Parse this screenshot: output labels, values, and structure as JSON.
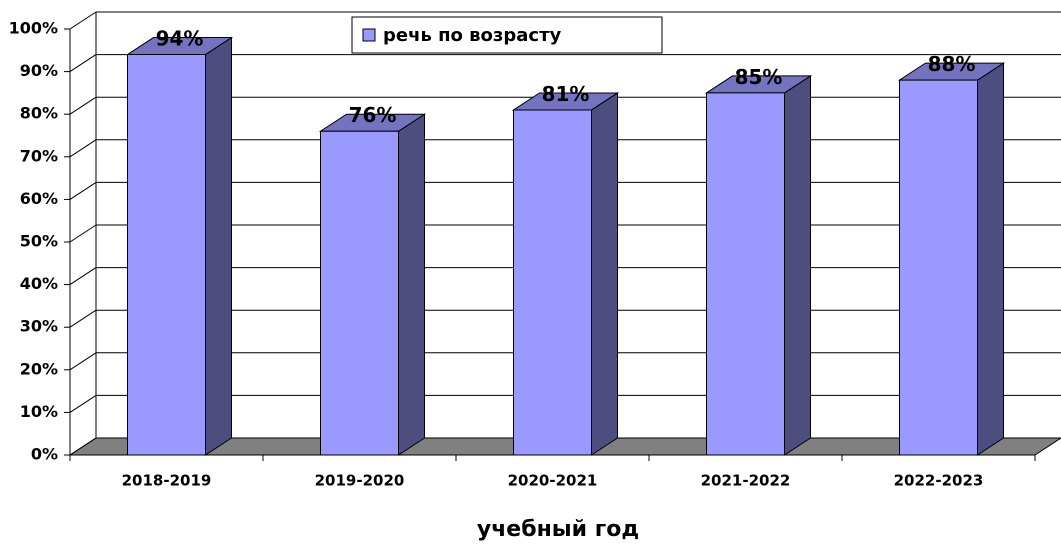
{
  "chart_data": {
    "type": "bar3d",
    "x_label": "учебный год",
    "categories": [
      "2018-2019",
      "2019-2020",
      "2020-2021",
      "2021-2022",
      "2022-2023"
    ],
    "series": [
      {
        "name": "речь по возрасту",
        "color": "#9999ff",
        "values": [
          94,
          76,
          81,
          85,
          88
        ],
        "value_labels": [
          "94%",
          "76%",
          "81%",
          "85%",
          "88%"
        ]
      }
    ],
    "ylim": [
      0,
      100
    ],
    "yticks": [
      {
        "value": 0,
        "label": "0%"
      },
      {
        "value": 10,
        "label": "10%"
      },
      {
        "value": 20,
        "label": "20%"
      },
      {
        "value": 30,
        "label": "30%"
      },
      {
        "value": 40,
        "label": "40%"
      },
      {
        "value": 50,
        "label": "50%"
      },
      {
        "value": 60,
        "label": "60%"
      },
      {
        "value": 70,
        "label": "70%"
      },
      {
        "value": 80,
        "label": "80%"
      },
      {
        "value": 90,
        "label": "90%"
      },
      {
        "value": 100,
        "label": "100%"
      }
    ],
    "grid": true,
    "legend": "top"
  }
}
